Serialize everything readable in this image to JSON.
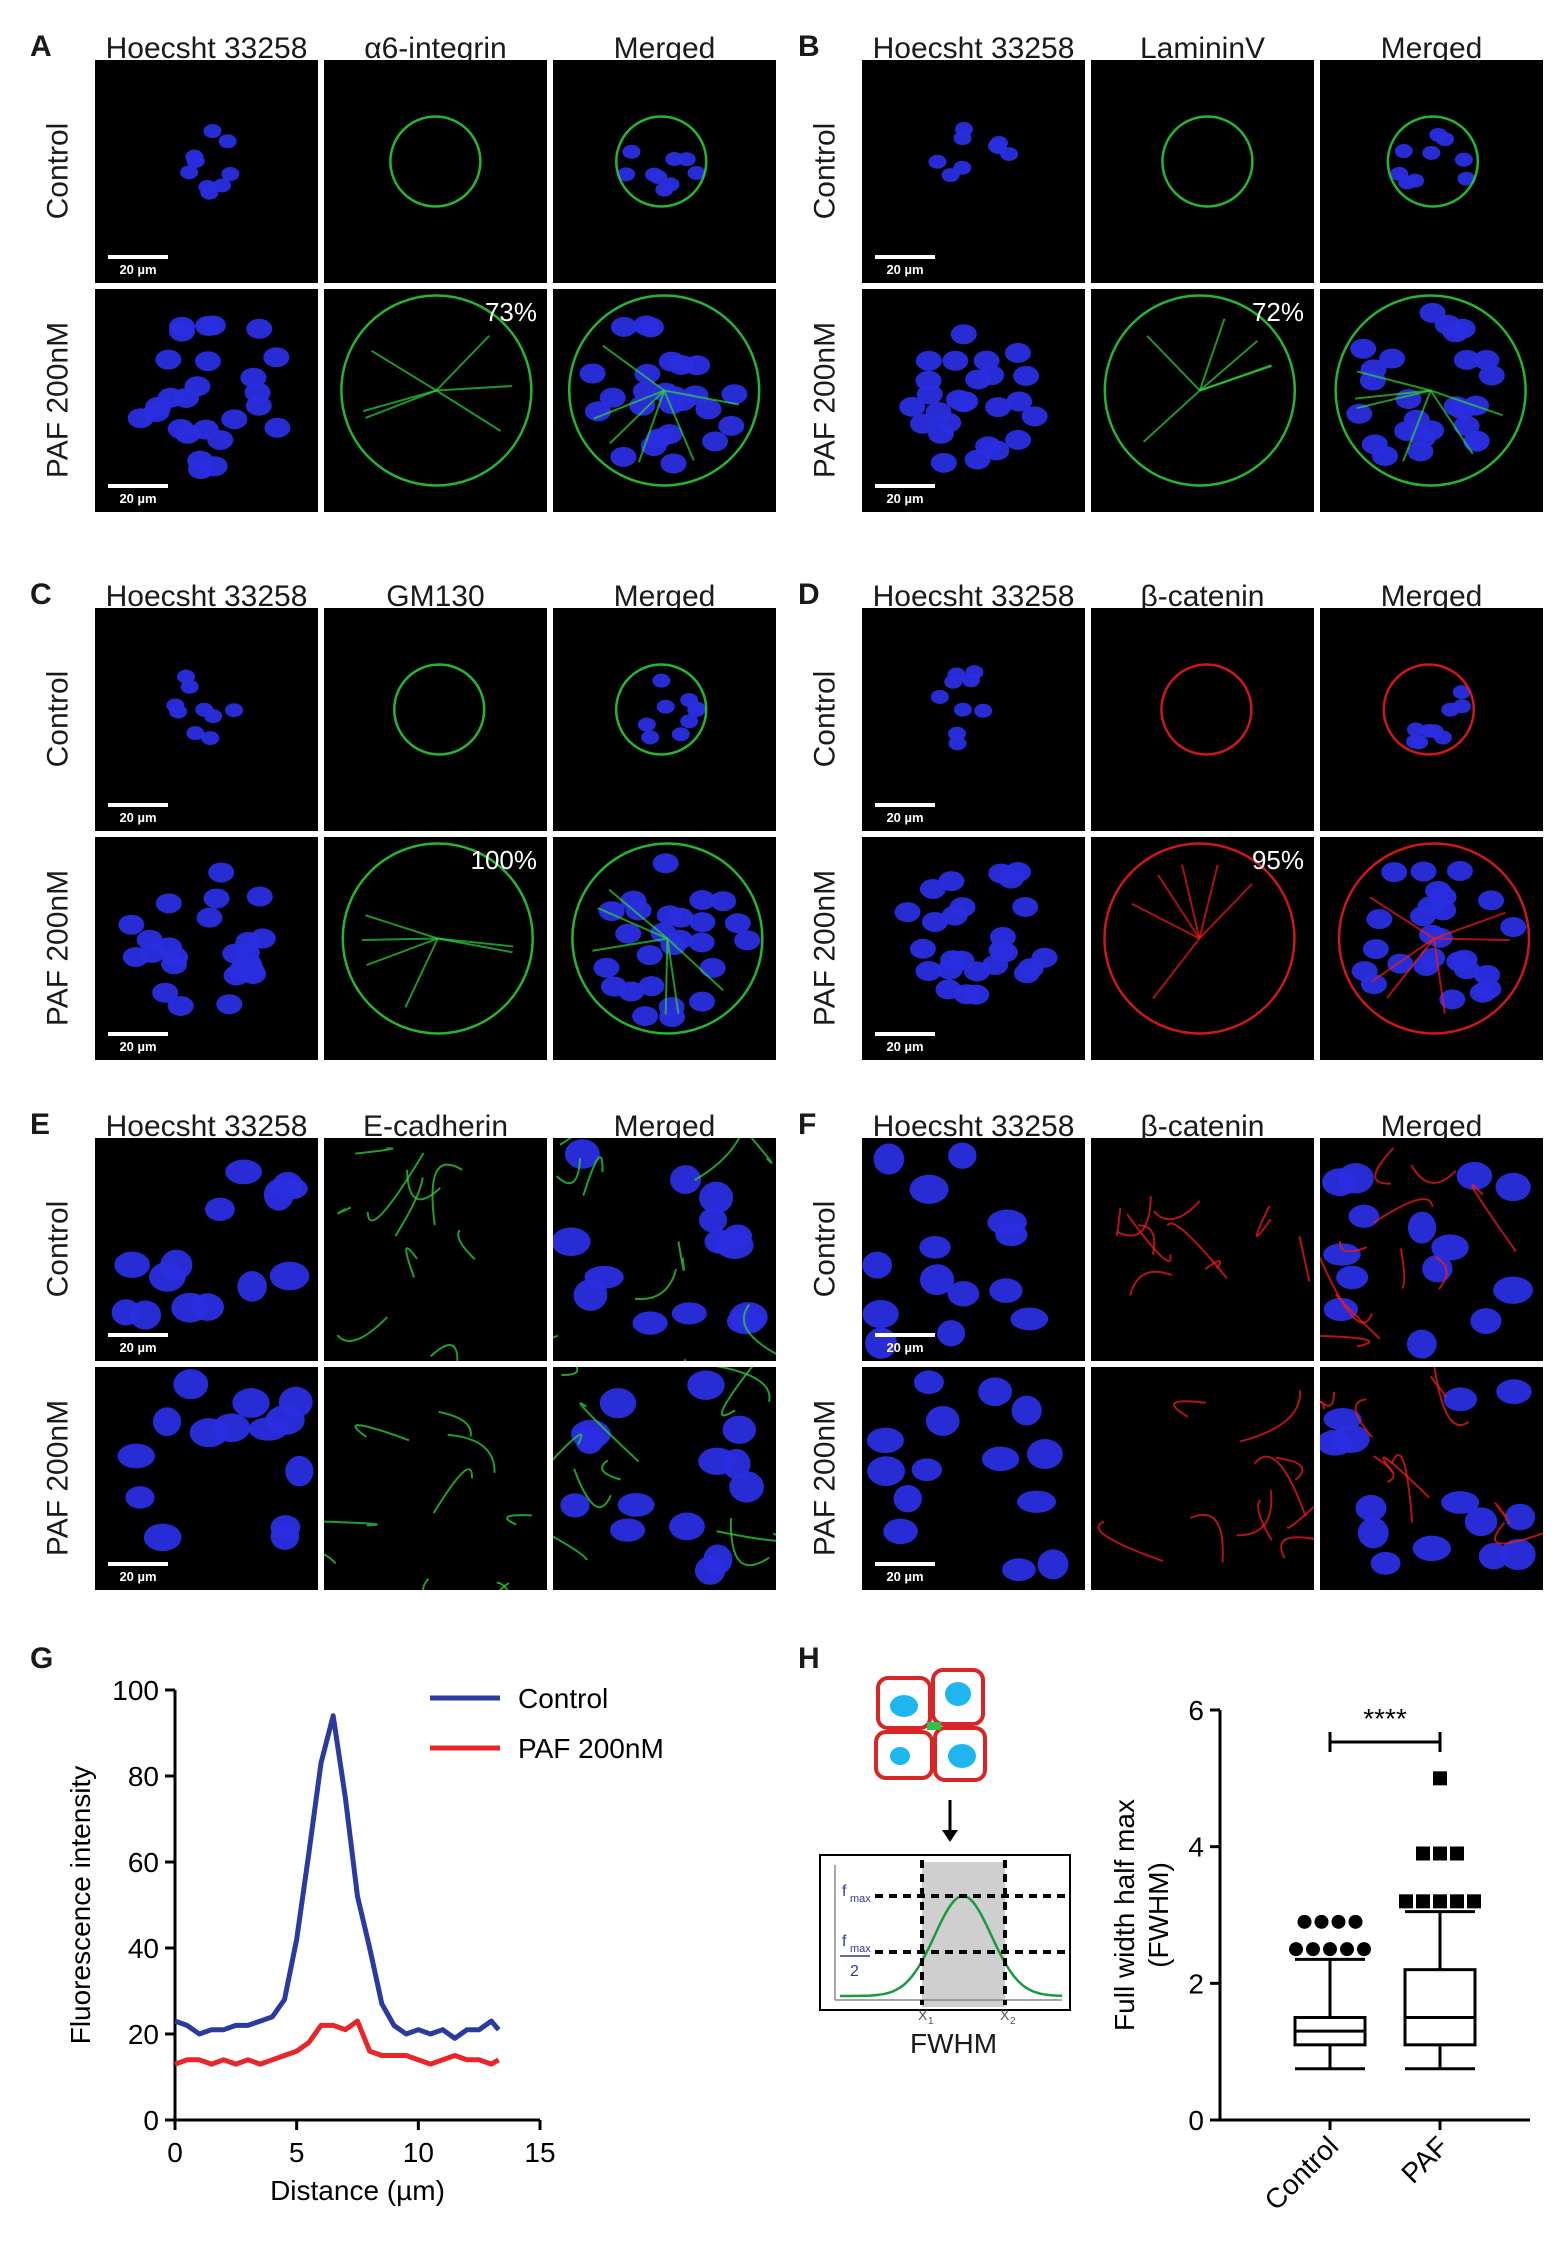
{
  "panels": {
    "A": {
      "letter": "A",
      "cols": [
        "Hoecsht 33258",
        "α6-integrin",
        "Merged"
      ],
      "rows": [
        "Control",
        "PAF 200nM"
      ],
      "percent": "73%",
      "scale": "20 µm",
      "channel": "green"
    },
    "B": {
      "letter": "B",
      "cols": [
        "Hoecsht 33258",
        "LamininV",
        "Merged"
      ],
      "rows": [
        "Control",
        "PAF 200nM"
      ],
      "percent": "72%",
      "scale": "20 µm",
      "channel": "green"
    },
    "C": {
      "letter": "C",
      "cols": [
        "Hoecsht 33258",
        "GM130",
        "Merged"
      ],
      "rows": [
        "Control",
        "PAF 200nM"
      ],
      "percent": "100%",
      "scale": "20 µm",
      "channel": "green"
    },
    "D": {
      "letter": "D",
      "cols": [
        "Hoecsht 33258",
        "β-catenin",
        "Merged"
      ],
      "rows": [
        "Control",
        "PAF 200nM"
      ],
      "percent": "95%",
      "scale": "20 µm",
      "channel": "red"
    },
    "E": {
      "letter": "E",
      "cols": [
        "Hoecsht 33258",
        "E-cadherin",
        "Merged"
      ],
      "rows": [
        "Control",
        "PAF 200nM"
      ],
      "percent": "",
      "scale": "20 µm",
      "channel": "green"
    },
    "F": {
      "letter": "F",
      "cols": [
        "Hoecsht 33258",
        "β-catenin",
        "Merged"
      ],
      "rows": [
        "Control",
        "PAF 200nM"
      ],
      "percent": "",
      "scale": "20 µm",
      "channel": "red"
    }
  },
  "colors": {
    "nucleus": "#2a2ee0",
    "green": "#2fd23a",
    "red": "#ee1c1c",
    "control_line": "#2b3a9e",
    "paf_line": "#e8262a"
  },
  "panelG": {
    "letter": "G"
  },
  "panelH": {
    "letter": "H",
    "schematic_label": "FWHM",
    "fmax": "f",
    "fmax_sub": "max",
    "half": "2",
    "x1": "X",
    "x1_sub": "1",
    "x2": "X",
    "x2_sub": "2"
  },
  "chart_data": [
    {
      "type": "line",
      "xlabel": "Distance (µm)",
      "ylabel": "Fluorescence intensity",
      "xlim": [
        0,
        15
      ],
      "ylim": [
        0,
        100
      ],
      "xticks": [
        0,
        5,
        10,
        15
      ],
      "yticks": [
        0,
        20,
        40,
        60,
        80,
        100
      ],
      "legend_position": "top-right",
      "series": [
        {
          "name": "Control",
          "x": [
            0,
            0.5,
            1,
            1.5,
            2,
            2.5,
            3,
            3.5,
            4,
            4.5,
            5,
            5.5,
            6,
            6.5,
            7,
            7.5,
            8,
            8.5,
            9,
            9.5,
            10,
            10.5,
            11,
            11.5,
            12,
            12.5,
            13,
            13.3
          ],
          "y": [
            23,
            22,
            20,
            21,
            21,
            22,
            22,
            23,
            24,
            28,
            42,
            62,
            83,
            94,
            75,
            52,
            40,
            27,
            22,
            20,
            21,
            20,
            21,
            19,
            21,
            21,
            23,
            21
          ]
        },
        {
          "name": "PAF 200nM",
          "x": [
            0,
            0.5,
            1,
            1.5,
            2,
            2.5,
            3,
            3.5,
            4,
            4.5,
            5,
            5.5,
            6,
            6.5,
            7,
            7.5,
            8,
            8.5,
            9,
            9.5,
            10,
            10.5,
            11,
            11.5,
            12,
            12.5,
            13,
            13.3
          ],
          "y": [
            13,
            14,
            14,
            13,
            14,
            13,
            14,
            13,
            14,
            15,
            16,
            18,
            22,
            22,
            21,
            23,
            16,
            15,
            15,
            15,
            14,
            13,
            14,
            15,
            14,
            14,
            13,
            14
          ]
        }
      ]
    },
    {
      "type": "box",
      "ylabel": "Full width half max\n(FWHM)",
      "ylim": [
        0,
        6
      ],
      "yticks": [
        0,
        2,
        4,
        6
      ],
      "categories": [
        "Control",
        "PAF"
      ],
      "significance": "****",
      "boxes": [
        {
          "name": "Control",
          "whisker_low": 0.75,
          "q1": 1.1,
          "median": 1.3,
          "q3": 1.5,
          "whisker_high": 2.35,
          "outliers": [
            2.5,
            2.5,
            2.5,
            2.5,
            2.5,
            2.9,
            2.9,
            2.9,
            2.9
          ]
        },
        {
          "name": "PAF",
          "whisker_low": 0.75,
          "q1": 1.1,
          "median": 1.5,
          "q3": 2.2,
          "whisker_high": 3.05,
          "outliers": [
            3.2,
            3.2,
            3.2,
            3.2,
            3.2,
            3.9,
            3.9,
            3.9,
            5.0
          ]
        }
      ]
    }
  ]
}
